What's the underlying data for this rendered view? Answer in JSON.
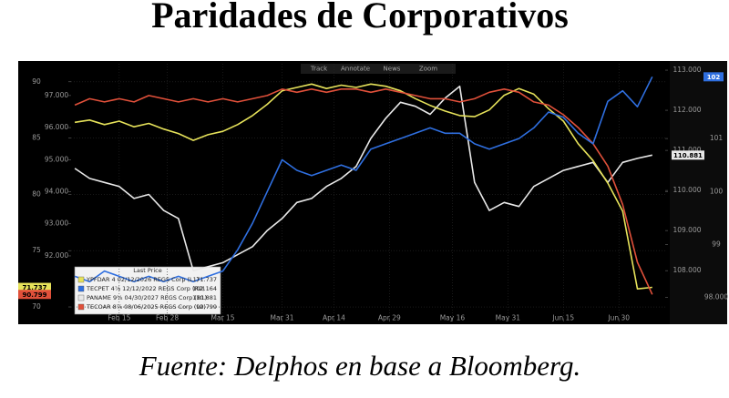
{
  "chart_data": {
    "type": "line",
    "title": "Paridades de Corporativos",
    "source": "Fuente:  Delphos en base a Bloomberg.",
    "toolbar": [
      "Track",
      "Annotate",
      "News",
      "Zoom"
    ],
    "legend_title": "Last Price",
    "grid": true,
    "x": [
      34,
      38,
      42,
      46,
      50,
      54,
      58,
      62,
      66,
      70,
      74,
      78,
      82,
      86,
      90,
      94,
      98,
      102,
      106,
      110,
      114,
      118,
      122,
      126,
      130,
      134,
      138,
      142,
      146,
      150,
      154,
      158,
      162,
      166,
      170,
      174,
      178,
      182,
      186,
      190
    ],
    "xlim": [
      33,
      193.5
    ],
    "xticks": [
      {
        "value": 46,
        "label": "Feb 15"
      },
      {
        "value": 59,
        "label": "Feb 28"
      },
      {
        "value": 74,
        "label": "Mar 15"
      },
      {
        "value": 90,
        "label": "Mar 31"
      },
      {
        "value": 104,
        "label": "Apr 14"
      },
      {
        "value": 119,
        "label": "Apr 29"
      },
      {
        "value": 136,
        "label": "May 16"
      },
      {
        "value": 151,
        "label": "May 31"
      },
      {
        "value": 166,
        "label": "Jun 15"
      },
      {
        "value": 181,
        "label": "Jun 30"
      }
    ],
    "ylim": [
      68.95,
      91.6
    ],
    "yticks": [
      70,
      75,
      80,
      85,
      90
    ],
    "y3lim": [
      90.04,
      97.99
    ],
    "y3ticks": [
      {
        "value": 92,
        "label": "92.000"
      },
      {
        "value": 93,
        "label": "93.000"
      },
      {
        "value": 94,
        "label": "94.000"
      },
      {
        "value": 95,
        "label": "95.000"
      },
      {
        "value": 96,
        "label": "96.000"
      },
      {
        "value": 97,
        "label": "97.000"
      }
    ],
    "y2lim": [
      106.8,
      113.16
    ],
    "y2ticks": [
      {
        "value": 108,
        "label": "108.000"
      },
      {
        "value": 109,
        "label": "109.000"
      },
      {
        "value": 110,
        "label": "110.000"
      },
      {
        "value": 111,
        "label": "111.000"
      },
      {
        "value": 112,
        "label": "112.000"
      },
      {
        "value": 113,
        "label": "113.000"
      }
    ],
    "y4lim": [
      97.6,
      102.41
    ],
    "y4ticks": [
      {
        "value": 98,
        "label": "98.000"
      },
      99,
      100,
      101
    ],
    "series": [
      {
        "name": "YPFDAR 4 02/12/2026 REGS Corp (L1)",
        "color": "#e6e25a",
        "axis": "y",
        "last_price": 71.737,
        "values": [
          86.4,
          86.6,
          86.2,
          86.5,
          86.0,
          86.3,
          85.8,
          85.4,
          84.8,
          85.3,
          85.6,
          86.2,
          87.0,
          88.0,
          89.2,
          89.5,
          89.8,
          89.4,
          89.7,
          89.5,
          89.8,
          89.6,
          89.2,
          88.5,
          87.9,
          87.4,
          87.0,
          86.9,
          87.5,
          88.8,
          89.4,
          88.9,
          87.6,
          86.5,
          84.5,
          83.0,
          81.0,
          78.5,
          71.6,
          71.737
        ]
      },
      {
        "name": "TECPET 4⅞ 12/12/2022 REGS Corp (R2)",
        "color": "#2f6fe0",
        "axis": "y4",
        "last_price": 102.164,
        "tag_label": "102",
        "values": [
          98.4,
          98.3,
          98.5,
          98.4,
          98.3,
          98.4,
          98.3,
          98.4,
          98.3,
          98.4,
          98.5,
          98.9,
          99.4,
          100.0,
          100.6,
          100.4,
          100.3,
          100.4,
          100.5,
          100.4,
          100.8,
          100.9,
          101.0,
          101.1,
          101.2,
          101.1,
          101.1,
          100.9,
          100.8,
          100.9,
          101.0,
          101.2,
          101.5,
          101.4,
          101.1,
          100.9,
          101.7,
          101.9,
          101.6,
          102.164
        ]
      },
      {
        "name": "PANAME 9⅝ 04/30/2027 REGS Corp (R1)",
        "color": "#e8e8e8",
        "axis": "y2",
        "last_price": 110.881,
        "values": [
          110.55,
          110.3,
          110.2,
          110.1,
          109.8,
          109.9,
          109.5,
          109.3,
          108.0,
          108.1,
          108.2,
          108.4,
          108.6,
          109.0,
          109.3,
          109.7,
          109.8,
          110.1,
          110.3,
          110.6,
          111.3,
          111.8,
          112.2,
          112.1,
          111.9,
          112.3,
          112.6,
          110.2,
          109.5,
          109.7,
          109.6,
          110.1,
          110.3,
          110.5,
          110.6,
          110.7,
          110.2,
          110.7,
          110.8,
          110.881
        ]
      },
      {
        "name": "TECOAR 8⅞ 08/06/2025 REGS Corp (L2)",
        "color": "#e0503a",
        "axis": "y3",
        "last_price": 90.799,
        "values": [
          96.7,
          96.9,
          96.8,
          96.9,
          96.8,
          97.0,
          96.9,
          96.8,
          96.9,
          96.8,
          96.9,
          96.8,
          96.9,
          97.0,
          97.2,
          97.1,
          97.2,
          97.1,
          97.2,
          97.2,
          97.1,
          97.2,
          97.1,
          97.0,
          96.9,
          96.9,
          96.8,
          96.9,
          97.1,
          97.2,
          97.1,
          96.8,
          96.7,
          96.4,
          96.0,
          95.5,
          94.8,
          93.6,
          91.8,
          90.799
        ]
      }
    ]
  }
}
